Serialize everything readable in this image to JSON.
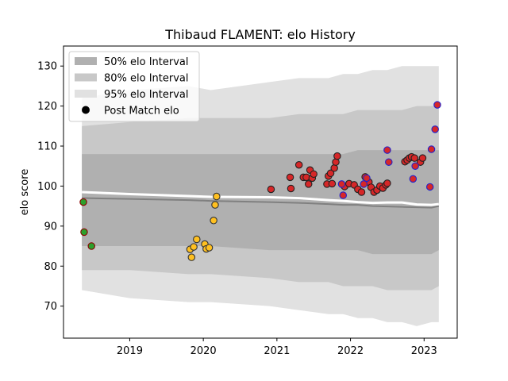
{
  "chart_data": {
    "type": "scatter",
    "title": "Thibaud FLAMENT: elo History",
    "xlabel": "",
    "ylabel": "elo score",
    "xlim": [
      2018.1,
      2023.45
    ],
    "ylim": [
      62,
      135
    ],
    "x_ticks": [
      2019,
      2020,
      2021,
      2022,
      2023
    ],
    "y_ticks": [
      70,
      80,
      90,
      100,
      110,
      120,
      130
    ],
    "grid": false,
    "legend": {
      "placement": "top-left",
      "entries": [
        "50% elo Interval",
        "80% elo Interval",
        "95% elo Interval",
        "Post Match elo"
      ]
    },
    "colors": {
      "band50": "#b0b0b0",
      "band80": "#c8c8c8",
      "band95": "#e1e1e1",
      "mean_line": "#ffffff",
      "median_line": "#808080"
    },
    "bands": {
      "x": [
        2018.35,
        2019.0,
        2019.8,
        2020.1,
        2020.9,
        2021.3,
        2021.7,
        2021.9,
        2022.1,
        2022.3,
        2022.5,
        2022.7,
        2022.9,
        2023.1,
        2023.2
      ],
      "p95_low": [
        74,
        72,
        71,
        71,
        70,
        69,
        68,
        68,
        67,
        67,
        66,
        66,
        65,
        66,
        66
      ],
      "p95_high": [
        122,
        124,
        125,
        124,
        126,
        127,
        127,
        128,
        128,
        129,
        129,
        130,
        130,
        130,
        130
      ],
      "p80_low": [
        79,
        79,
        78,
        78,
        77,
        76,
        76,
        75,
        75,
        75,
        74,
        74,
        74,
        74,
        75
      ],
      "p80_high": [
        115,
        116,
        117,
        117,
        117,
        118,
        118,
        118,
        119,
        119,
        119,
        119,
        120,
        120,
        120
      ],
      "p50_low": [
        85,
        85,
        85,
        85,
        84,
        84,
        84,
        84,
        84,
        83,
        83,
        83,
        83,
        83,
        84
      ],
      "p50_high": [
        108,
        108,
        108,
        108,
        108,
        108,
        108,
        108,
        109,
        109,
        109,
        109,
        109,
        109,
        109
      ]
    },
    "lines": {
      "x": [
        2018.35,
        2019.0,
        2019.8,
        2020.1,
        2020.9,
        2021.3,
        2021.7,
        2021.9,
        2022.1,
        2022.3,
        2022.5,
        2022.7,
        2022.9,
        2023.1,
        2023.2
      ],
      "mean": [
        98.5,
        98,
        97.5,
        97.3,
        97.2,
        97.0,
        96.5,
        96.3,
        96.0,
        95.8,
        95.9,
        95.9,
        95.4,
        95.3,
        95.5
      ],
      "median": [
        97.0,
        96.8,
        96.5,
        96.3,
        96.0,
        95.8,
        95.5,
        95.3,
        95.3,
        95.0,
        94.9,
        94.8,
        94.7,
        94.6,
        95.0
      ]
    },
    "series": [
      {
        "fill": "#2ca02c",
        "edge": "#8b0000",
        "points": [
          [
            2018.37,
            96.0
          ],
          [
            2018.38,
            88.5
          ],
          [
            2018.48,
            85.0
          ]
        ]
      },
      {
        "fill": "#ffc020",
        "edge": "#333333",
        "points": [
          [
            2019.82,
            84.2
          ],
          [
            2019.84,
            82.2
          ],
          [
            2019.87,
            84.8
          ],
          [
            2019.91,
            86.7
          ],
          [
            2020.02,
            85.5
          ],
          [
            2020.04,
            84.3
          ],
          [
            2020.08,
            84.6
          ],
          [
            2020.14,
            91.4
          ],
          [
            2020.16,
            95.3
          ],
          [
            2020.18,
            97.4
          ]
        ]
      },
      {
        "fill": "#d62728",
        "edge": "#222222",
        "points": [
          [
            2020.92,
            99.2
          ],
          [
            2021.18,
            102.2
          ],
          [
            2021.19,
            99.4
          ],
          [
            2021.3,
            105.3
          ],
          [
            2021.36,
            102.2
          ],
          [
            2021.4,
            102.2
          ],
          [
            2021.43,
            100.5
          ],
          [
            2021.45,
            104.0
          ],
          [
            2021.48,
            102.0
          ],
          [
            2021.5,
            103.0
          ],
          [
            2021.68,
            100.5
          ],
          [
            2021.7,
            102.5
          ],
          [
            2021.73,
            103.2
          ],
          [
            2021.75,
            100.6
          ],
          [
            2021.78,
            104.5
          ],
          [
            2021.8,
            106.0
          ],
          [
            2021.82,
            107.5
          ],
          [
            2021.92,
            99.9
          ],
          [
            2021.98,
            100.6
          ],
          [
            2022.05,
            100.3
          ],
          [
            2022.1,
            99.2
          ],
          [
            2022.15,
            98.5
          ],
          [
            2022.2,
            102.3
          ],
          [
            2022.25,
            101.0
          ],
          [
            2022.28,
            99.7
          ],
          [
            2022.32,
            98.5
          ],
          [
            2022.36,
            99.0
          ],
          [
            2022.4,
            100.0
          ],
          [
            2022.44,
            99.5
          ],
          [
            2022.48,
            100.3
          ],
          [
            2022.5,
            100.7
          ],
          [
            2022.74,
            106.1
          ],
          [
            2022.77,
            106.5
          ],
          [
            2022.8,
            107.0
          ],
          [
            2022.83,
            107.3
          ],
          [
            2022.87,
            107.0
          ],
          [
            2022.95,
            106.0
          ],
          [
            2022.98,
            107.0
          ]
        ]
      },
      {
        "fill": "#d62728",
        "edge": "#2222cc",
        "points": [
          [
            2021.88,
            100.5
          ],
          [
            2021.9,
            97.7
          ],
          [
            2022.18,
            100.5
          ],
          [
            2022.22,
            102.0
          ],
          [
            2022.5,
            109.0
          ],
          [
            2022.52,
            106.0
          ],
          [
            2022.85,
            101.8
          ],
          [
            2022.88,
            105.0
          ],
          [
            2023.08,
            99.8
          ],
          [
            2023.1,
            109.2
          ],
          [
            2023.15,
            114.2
          ],
          [
            2023.18,
            120.3
          ]
        ]
      }
    ]
  }
}
